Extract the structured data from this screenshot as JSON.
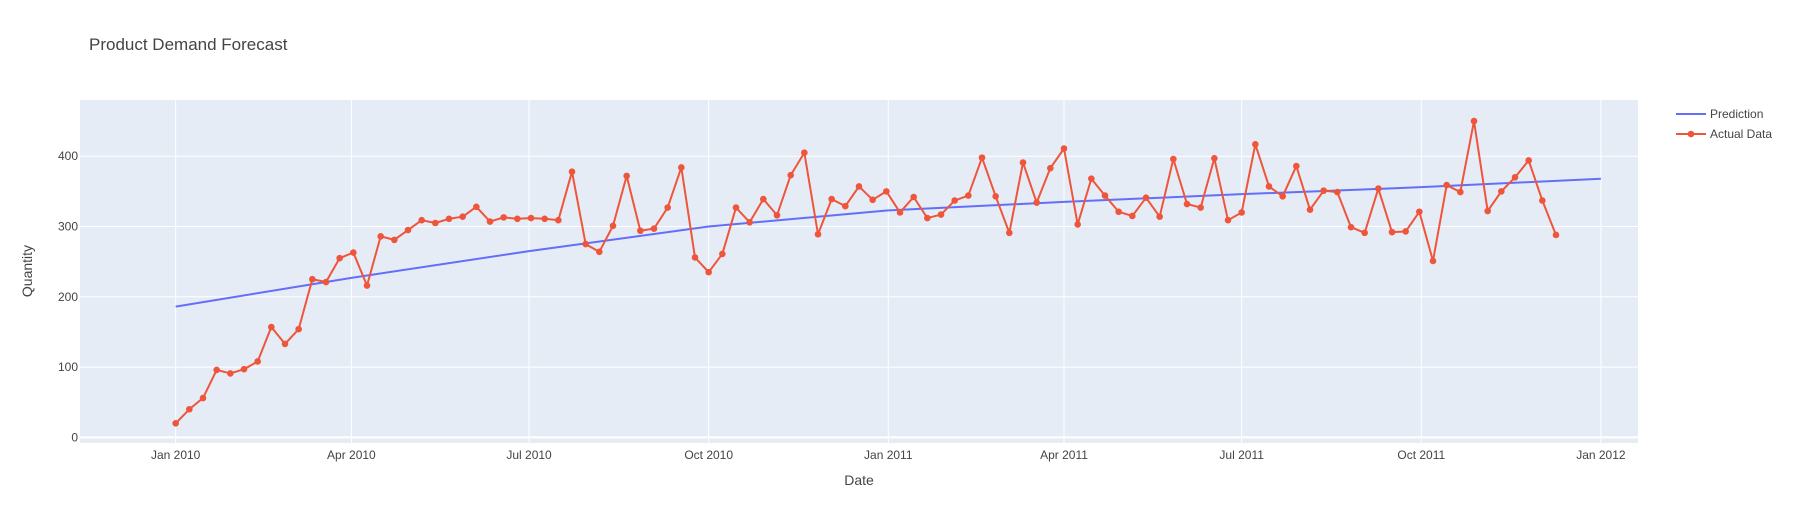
{
  "chart_data": {
    "type": "line",
    "title": "Product Demand Forecast",
    "xlabel": "Date",
    "ylabel": "Quantity",
    "xlim": [
      "2009-11-13",
      "2012-01-20"
    ],
    "ylim": [
      -8,
      480
    ],
    "x_ticks": [
      {
        "date": "2010-01-01",
        "label": "Jan 2010"
      },
      {
        "date": "2010-04-01",
        "label": "Apr 2010"
      },
      {
        "date": "2010-07-01",
        "label": "Jul 2010"
      },
      {
        "date": "2010-10-01",
        "label": "Oct 2010"
      },
      {
        "date": "2011-01-01",
        "label": "Jan 2011"
      },
      {
        "date": "2011-04-01",
        "label": "Apr 2011"
      },
      {
        "date": "2011-07-01",
        "label": "Jul 2011"
      },
      {
        "date": "2011-10-01",
        "label": "Oct 2011"
      },
      {
        "date": "2012-01-01",
        "label": "Jan 2012"
      }
    ],
    "y_ticks": [
      0,
      100,
      200,
      300,
      400
    ],
    "grid": true,
    "legend_position": "top-right",
    "plot_background": "#e5ecf6",
    "series": [
      {
        "name": "Prediction",
        "mode": "lines",
        "color": "#636efa",
        "x": [
          "2010-01-01",
          "2010-04-01",
          "2010-07-01",
          "2010-10-01",
          "2011-01-01",
          "2011-04-01",
          "2011-07-01",
          "2011-10-01",
          "2012-01-01"
        ],
        "y": [
          186,
          227,
          265,
          300,
          323,
          335,
          346,
          356,
          368
        ]
      },
      {
        "name": "Actual Data",
        "mode": "lines+markers",
        "color": "#ef553b",
        "x": [
          "2010-01-01",
          "2010-01-08",
          "2010-01-15",
          "2010-01-22",
          "2010-01-29",
          "2010-02-05",
          "2010-02-12",
          "2010-02-19",
          "2010-02-26",
          "2010-03-05",
          "2010-03-12",
          "2010-03-19",
          "2010-03-26",
          "2010-04-02",
          "2010-04-09",
          "2010-04-16",
          "2010-04-23",
          "2010-04-30",
          "2010-05-07",
          "2010-05-14",
          "2010-05-21",
          "2010-05-28",
          "2010-06-04",
          "2010-06-11",
          "2010-06-18",
          "2010-06-25",
          "2010-07-02",
          "2010-07-09",
          "2010-07-16",
          "2010-07-23",
          "2010-07-30",
          "2010-08-06",
          "2010-08-13",
          "2010-08-20",
          "2010-08-27",
          "2010-09-03",
          "2010-09-10",
          "2010-09-17",
          "2010-09-24",
          "2010-10-01",
          "2010-10-08",
          "2010-10-15",
          "2010-10-22",
          "2010-10-29",
          "2010-11-05",
          "2010-11-12",
          "2010-11-19",
          "2010-11-26",
          "2010-12-03",
          "2010-12-10",
          "2010-12-17",
          "2010-12-24",
          "2010-12-31",
          "2011-01-07",
          "2011-01-14",
          "2011-01-21",
          "2011-01-28",
          "2011-02-04",
          "2011-02-11",
          "2011-02-18",
          "2011-02-25",
          "2011-03-04",
          "2011-03-11",
          "2011-03-18",
          "2011-03-25",
          "2011-04-01",
          "2011-04-08",
          "2011-04-15",
          "2011-04-22",
          "2011-04-29",
          "2011-05-06",
          "2011-05-13",
          "2011-05-20",
          "2011-05-27",
          "2011-06-03",
          "2011-06-10",
          "2011-06-17",
          "2011-06-24",
          "2011-07-01",
          "2011-07-08",
          "2011-07-15",
          "2011-07-22",
          "2011-07-29",
          "2011-08-05",
          "2011-08-12",
          "2011-08-19",
          "2011-08-26",
          "2011-09-02",
          "2011-09-09",
          "2011-09-16",
          "2011-09-23",
          "2011-09-30",
          "2011-10-07",
          "2011-10-14",
          "2011-10-21",
          "2011-10-28",
          "2011-11-04",
          "2011-11-11",
          "2011-11-18",
          "2011-11-25",
          "2011-12-02",
          "2011-12-09"
        ],
        "y": [
          20,
          40,
          56,
          96,
          91,
          97,
          108,
          157,
          133,
          154,
          225,
          221,
          255,
          263,
          216,
          286,
          281,
          295,
          309,
          305,
          311,
          314,
          328,
          307,
          313,
          311,
          312,
          311,
          309,
          378,
          275,
          264,
          301,
          372,
          294,
          297,
          327,
          384,
          256,
          235,
          261,
          327,
          306,
          339,
          316,
          373,
          405,
          289,
          339,
          329,
          357,
          338,
          350,
          320,
          342,
          312,
          317,
          337,
          344,
          398,
          343,
          291,
          391,
          334,
          383,
          411,
          303,
          368,
          344,
          321,
          315,
          341,
          314,
          396,
          332,
          327,
          397,
          309,
          320,
          417,
          357,
          343,
          386,
          324,
          351,
          349,
          299,
          291,
          354,
          292,
          293,
          321,
          251,
          359,
          349,
          450,
          322,
          350,
          370,
          394,
          337,
          288
        ]
      }
    ]
  }
}
